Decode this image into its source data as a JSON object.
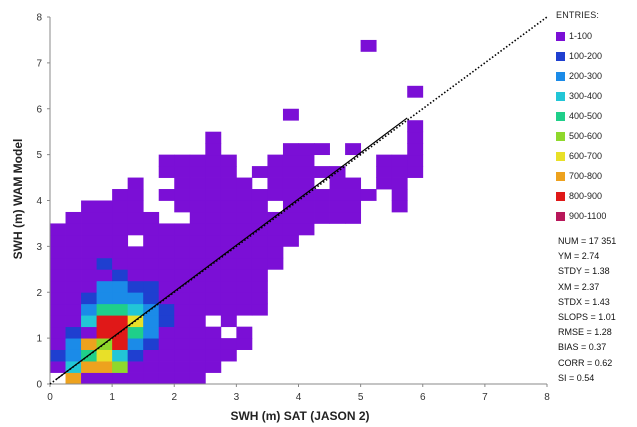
{
  "chart_data": {
    "type": "heatmap",
    "xlabel": "SWH (m) SAT (JASON 2)",
    "ylabel": "SWH (m) WAM Model",
    "xlim": [
      0,
      8
    ],
    "ylim": [
      0,
      8
    ],
    "x_ticks": [
      "0",
      "1",
      "2",
      "3",
      "4",
      "5",
      "6",
      "7",
      "8"
    ],
    "y_ticks": [
      "0",
      "1",
      "2",
      "3",
      "4",
      "5",
      "6",
      "7",
      "8"
    ],
    "bin_size": 0.25,
    "grid": false,
    "reference_line": {
      "style": "dotted",
      "from": [
        0,
        0
      ],
      "to": [
        8,
        8
      ]
    },
    "fit_line": {
      "style": "solid",
      "from": [
        0.1,
        0.1
      ],
      "to": [
        5.75,
        5.8
      ]
    },
    "legend": {
      "title": "ENTRIES:",
      "placement": "right",
      "entries": [
        {
          "label": "1-100",
          "color": "#7b0fd6"
        },
        {
          "label": "100-200",
          "color": "#1f3fd0"
        },
        {
          "label": "200-300",
          "color": "#1b8be8"
        },
        {
          "label": "300-400",
          "color": "#22c6d6"
        },
        {
          "label": "400-500",
          "color": "#1fcf8a"
        },
        {
          "label": "500-600",
          "color": "#8fd82c"
        },
        {
          "label": "600-700",
          "color": "#e8e028"
        },
        {
          "label": "700-800",
          "color": "#eda21e"
        },
        {
          "label": "800-900",
          "color": "#e01818"
        },
        {
          "label": "900-1100",
          "color": "#b8175a"
        }
      ]
    },
    "rows": [
      {
        "y": 0,
        "x_ranges": [
          [
            0.25,
            2.5
          ]
        ]
      },
      {
        "y": 0.25,
        "x_ranges": [
          [
            0.0,
            2.75
          ]
        ]
      },
      {
        "y": 0.5,
        "x_ranges": [
          [
            0.0,
            3.0
          ]
        ]
      },
      {
        "y": 0.75,
        "x_ranges": [
          [
            0.0,
            3.25
          ]
        ]
      },
      {
        "y": 1.0,
        "x_ranges": [
          [
            0.0,
            3.25
          ]
        ]
      },
      {
        "y": 1.25,
        "x_ranges": [
          [
            0.0,
            3.0
          ]
        ]
      },
      {
        "y": 1.5,
        "x_ranges": [
          [
            0.0,
            3.5
          ]
        ]
      },
      {
        "y": 1.75,
        "x_ranges": [
          [
            0.0,
            3.5
          ]
        ]
      },
      {
        "y": 2.0,
        "x_ranges": [
          [
            0.0,
            3.5
          ]
        ]
      },
      {
        "y": 2.25,
        "x_ranges": [
          [
            0.0,
            3.5
          ]
        ]
      },
      {
        "y": 2.5,
        "x_ranges": [
          [
            0.0,
            3.75
          ]
        ]
      },
      {
        "y": 2.75,
        "x_ranges": [
          [
            0.0,
            3.75
          ]
        ]
      },
      {
        "y": 3.0,
        "x_ranges": [
          [
            0.0,
            4.0
          ]
        ]
      },
      {
        "y": 3.25,
        "x_ranges": [
          [
            0.0,
            4.25
          ]
        ]
      },
      {
        "y": 3.5,
        "x_ranges": [
          [
            0.25,
            1.75
          ],
          [
            2.0,
            5.0
          ]
        ]
      },
      {
        "y": 3.75,
        "x_ranges": [
          [
            0.5,
            1.5
          ],
          [
            2.0,
            5.0
          ],
          [
            5.5,
            5.75
          ]
        ]
      },
      {
        "y": 4.0,
        "x_ranges": [
          [
            1.0,
            1.5
          ],
          [
            1.75,
            5.25
          ],
          [
            5.5,
            5.75
          ]
        ]
      },
      {
        "y": 4.25,
        "x_ranges": [
          [
            1.25,
            1.5
          ],
          [
            2.0,
            5.0
          ],
          [
            5.25,
            5.75
          ]
        ]
      },
      {
        "y": 4.5,
        "x_ranges": [
          [
            1.75,
            3.0
          ],
          [
            3.25,
            4.75
          ],
          [
            5.25,
            6.0
          ]
        ]
      },
      {
        "y": 4.75,
        "x_ranges": [
          [
            1.75,
            3.0
          ],
          [
            3.5,
            4.25
          ],
          [
            5.25,
            6.0
          ]
        ]
      },
      {
        "y": 5.0,
        "x_ranges": [
          [
            2.5,
            2.75
          ],
          [
            3.75,
            4.5
          ],
          [
            4.75,
            5.0
          ],
          [
            5.75,
            6.0
          ]
        ]
      },
      {
        "y": 5.25,
        "x_ranges": [
          [
            2.5,
            2.75
          ],
          [
            5.75,
            6.0
          ]
        ]
      },
      {
        "y": 5.5,
        "x_ranges": [
          [
            5.75,
            6.0
          ]
        ]
      },
      {
        "y": 5.75,
        "x_ranges": [
          [
            3.75,
            4.0
          ]
        ]
      },
      {
        "y": 6.25,
        "x_ranges": [
          [
            5.75,
            6.0
          ]
        ]
      },
      {
        "y": 7.25,
        "x_ranges": [
          [
            5.0,
            5.25
          ]
        ]
      }
    ],
    "holes": [
      [
        0.75,
        4.0
      ],
      [
        1.25,
        3.0
      ],
      [
        2.0,
        3.5
      ],
      [
        2.5,
        1.25
      ],
      [
        2.75,
        1.0
      ],
      [
        3.5,
        3.75
      ],
      [
        4.25,
        4.25
      ],
      [
        3.25,
        4.25
      ],
      [
        3.0,
        4.75
      ]
    ],
    "hot_bins": [
      {
        "x": 0.75,
        "y": 2.5,
        "level": 1
      },
      {
        "x": 1.0,
        "y": 2.25,
        "level": 1
      },
      {
        "x": 1.25,
        "y": 2.0,
        "level": 1
      },
      {
        "x": 1.5,
        "y": 2.0,
        "level": 1
      },
      {
        "x": 1.5,
        "y": 1.75,
        "level": 1
      },
      {
        "x": 1.75,
        "y": 1.5,
        "level": 1
      },
      {
        "x": 1.75,
        "y": 1.25,
        "level": 1
      },
      {
        "x": 1.5,
        "y": 0.75,
        "level": 1
      },
      {
        "x": 1.25,
        "y": 0.5,
        "level": 1
      },
      {
        "x": 1.0,
        "y": 0.25,
        "level": 1
      },
      {
        "x": 0.5,
        "y": 1.75,
        "level": 1
      },
      {
        "x": 0.25,
        "y": 1.0,
        "level": 1
      },
      {
        "x": 0.0,
        "y": 0.5,
        "level": 1
      },
      {
        "x": 0.25,
        "y": 0.25,
        "level": 1
      },
      {
        "x": 0.25,
        "y": 0.75,
        "level": 2
      },
      {
        "x": 0.5,
        "y": 1.5,
        "level": 2
      },
      {
        "x": 0.75,
        "y": 1.75,
        "level": 2
      },
      {
        "x": 0.75,
        "y": 2.0,
        "level": 2
      },
      {
        "x": 1.0,
        "y": 2.0,
        "level": 2
      },
      {
        "x": 1.0,
        "y": 1.75,
        "level": 2
      },
      {
        "x": 1.25,
        "y": 1.75,
        "level": 2
      },
      {
        "x": 1.5,
        "y": 1.5,
        "level": 2
      },
      {
        "x": 1.5,
        "y": 1.25,
        "level": 2
      },
      {
        "x": 1.5,
        "y": 1.0,
        "level": 2
      },
      {
        "x": 0.25,
        "y": 0.5,
        "level": 2
      },
      {
        "x": 1.25,
        "y": 0.75,
        "level": 2
      },
      {
        "x": 0.75,
        "y": 0.25,
        "level": 2
      },
      {
        "x": 0.5,
        "y": 1.25,
        "level": 3
      },
      {
        "x": 1.25,
        "y": 1.5,
        "level": 3
      },
      {
        "x": 0.25,
        "y": 0.25,
        "level": 3
      },
      {
        "x": 1.25,
        "y": 1.25,
        "level": 3
      },
      {
        "x": 1.0,
        "y": 0.5,
        "level": 3
      },
      {
        "x": 0.75,
        "y": 1.5,
        "level": 4
      },
      {
        "x": 1.0,
        "y": 1.5,
        "level": 4
      },
      {
        "x": 1.25,
        "y": 1.0,
        "level": 4
      },
      {
        "x": 0.5,
        "y": 0.5,
        "level": 4
      },
      {
        "x": 0.75,
        "y": 0.75,
        "level": 5
      },
      {
        "x": 1.0,
        "y": 1.0,
        "level": 5
      },
      {
        "x": 1.0,
        "y": 0.25,
        "level": 5
      },
      {
        "x": 0.25,
        "y": 0.0,
        "level": 5
      },
      {
        "x": 1.0,
        "y": 0.75,
        "level": 6
      },
      {
        "x": 0.75,
        "y": 0.5,
        "level": 6
      },
      {
        "x": 1.25,
        "y": 1.25,
        "level": 6
      },
      {
        "x": 0.25,
        "y": 0.0,
        "level": 7
      },
      {
        "x": 0.5,
        "y": 0.25,
        "level": 7
      },
      {
        "x": 0.5,
        "y": 0.75,
        "level": 7
      },
      {
        "x": 0.75,
        "y": 0.25,
        "level": 7
      },
      {
        "x": 0.75,
        "y": 1.0,
        "level": 8
      },
      {
        "x": 0.75,
        "y": 1.25,
        "level": 8
      },
      {
        "x": 1.0,
        "y": 1.25,
        "level": 8
      },
      {
        "x": 1.0,
        "y": 1.0,
        "level": 8
      },
      {
        "x": 1.0,
        "y": 0.75,
        "level": 8
      }
    ],
    "stats": [
      "NUM  =  17 351",
      "YM  =  2.74",
      "STDY = 1.38",
      "XM = 2.37",
      "STDX = 1.43",
      "SLOPS = 1.01",
      "RMSE = 1.28",
      "BIAS = 0.37",
      "CORR = 0.62",
      "SI = 0.54"
    ]
  }
}
